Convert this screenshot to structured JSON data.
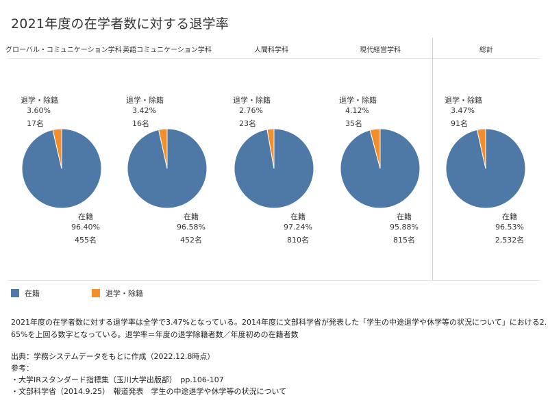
{
  "title": "2021年度の在学者数に対する退学率",
  "headers": [
    "グローバル・コミュニケーション学科",
    "英語コミュニケーション学科",
    "人間科学科",
    "現代経営学科",
    "総計"
  ],
  "colors": {
    "enrolled": "#4e79a7",
    "withdrawn": "#f28e2b"
  },
  "chart_data": {
    "type": "pie",
    "title": "2021年度の在学者数に対する退学率",
    "categories": [
      "在籍",
      "退学・除籍"
    ],
    "panels": [
      {
        "name": "グローバル・コミュニケーション学科",
        "slices": [
          {
            "label": "在籍",
            "percent": 96.4,
            "count": 455,
            "percent_label": "96.40%",
            "count_label": "455名"
          },
          {
            "label": "退学・除籍",
            "percent": 3.6,
            "count": 17,
            "percent_label": "3.60%",
            "count_label": "17名"
          }
        ]
      },
      {
        "name": "英語コミュニケーション学科",
        "slices": [
          {
            "label": "在籍",
            "percent": 96.58,
            "count": 452,
            "percent_label": "96.58%",
            "count_label": "452名"
          },
          {
            "label": "退学・除籍",
            "percent": 3.42,
            "count": 16,
            "percent_label": "3.42%",
            "count_label": "16名"
          }
        ]
      },
      {
        "name": "人間科学科",
        "slices": [
          {
            "label": "在籍",
            "percent": 97.24,
            "count": 810,
            "percent_label": "97.24%",
            "count_label": "810名"
          },
          {
            "label": "退学・除籍",
            "percent": 2.76,
            "count": 23,
            "percent_label": "2.76%",
            "count_label": "23名"
          }
        ]
      },
      {
        "name": "現代経営学科",
        "slices": [
          {
            "label": "在籍",
            "percent": 95.88,
            "count": 815,
            "percent_label": "95.88%",
            "count_label": "815名"
          },
          {
            "label": "退学・除籍",
            "percent": 4.12,
            "count": 35,
            "percent_label": "4.12%",
            "count_label": "35名"
          }
        ]
      },
      {
        "name": "総計",
        "slices": [
          {
            "label": "在籍",
            "percent": 96.53,
            "count": 2532,
            "percent_label": "96.53%",
            "count_label": "2,532名"
          },
          {
            "label": "退学・除籍",
            "percent": 3.47,
            "count": 91,
            "percent_label": "3.47%",
            "count_label": "91名"
          }
        ]
      }
    ],
    "legend": "bottom-left"
  },
  "legend": [
    "在籍",
    "退学・除籍"
  ],
  "notes": {
    "line1": "2021年度の在学者数に対する退学率は全学で3.47%となっている。2014年度に文部科学省が発表した「学生の中途退学や休学等の状況について」における2.",
    "line2": "65%を上回る数字となっている。退学率＝年度の退学除籍者数／年度初めの在籍者数",
    "source": "出典：学務システムデータをもとに作成（2022.12.8時点）",
    "ref_heading": "参考：",
    "ref1": "・大学IRスタンダード指標集（玉川大学出版部）　pp.106-107",
    "ref2": "・文部科学省（2014.9.25）　報道発表　学生の中途退学や休学等の状況について"
  }
}
